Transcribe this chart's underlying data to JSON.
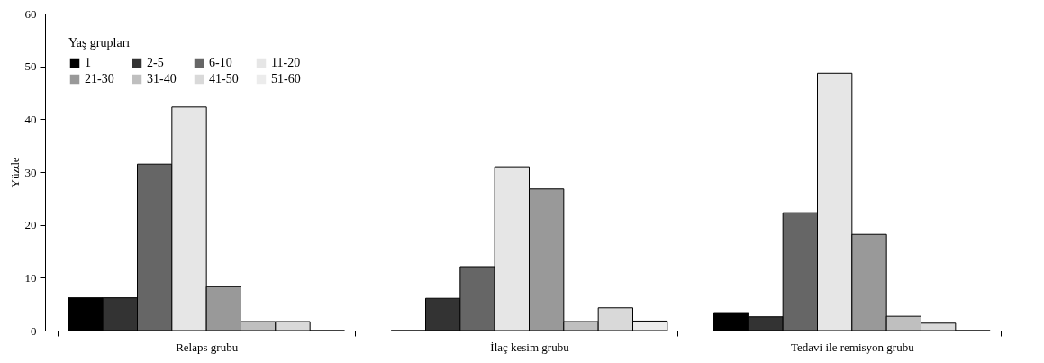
{
  "chart_data": {
    "type": "bar",
    "ylabel": "Yüzde",
    "legend_title": "Yaş grupları",
    "legend": "top left",
    "grid": false,
    "categories": [
      "Relaps grubu",
      "İlaç kesim grubu",
      "Tedavi ile remisyon grubu"
    ],
    "ylim": [
      0,
      60
    ],
    "yticks": [
      0,
      10,
      20,
      30,
      40,
      50,
      60
    ],
    "series": [
      {
        "name": "1",
        "color": "#000000",
        "values": [
          6.2,
          0,
          3.4
        ]
      },
      {
        "name": "2-5",
        "color": "#333333",
        "values": [
          6.2,
          6.1,
          2.6
        ]
      },
      {
        "name": "6-10",
        "color": "#666666",
        "values": [
          31.5,
          12.1,
          22.3
        ]
      },
      {
        "name": "11-20",
        "color": "#e6e6e6",
        "values": [
          42.3,
          31,
          48.7
        ]
      },
      {
        "name": "21-30",
        "color": "#999999",
        "values": [
          8.3,
          26.8,
          18.2
        ]
      },
      {
        "name": "31-40",
        "color": "#bfbfbf",
        "values": [
          1.7,
          1.7,
          2.7
        ]
      },
      {
        "name": "41-50",
        "color": "#d9d9d9",
        "values": [
          1.7,
          4.3,
          1.4
        ]
      },
      {
        "name": "51-60",
        "color": "#ececec",
        "values": [
          0,
          1.8,
          0
        ]
      }
    ]
  }
}
